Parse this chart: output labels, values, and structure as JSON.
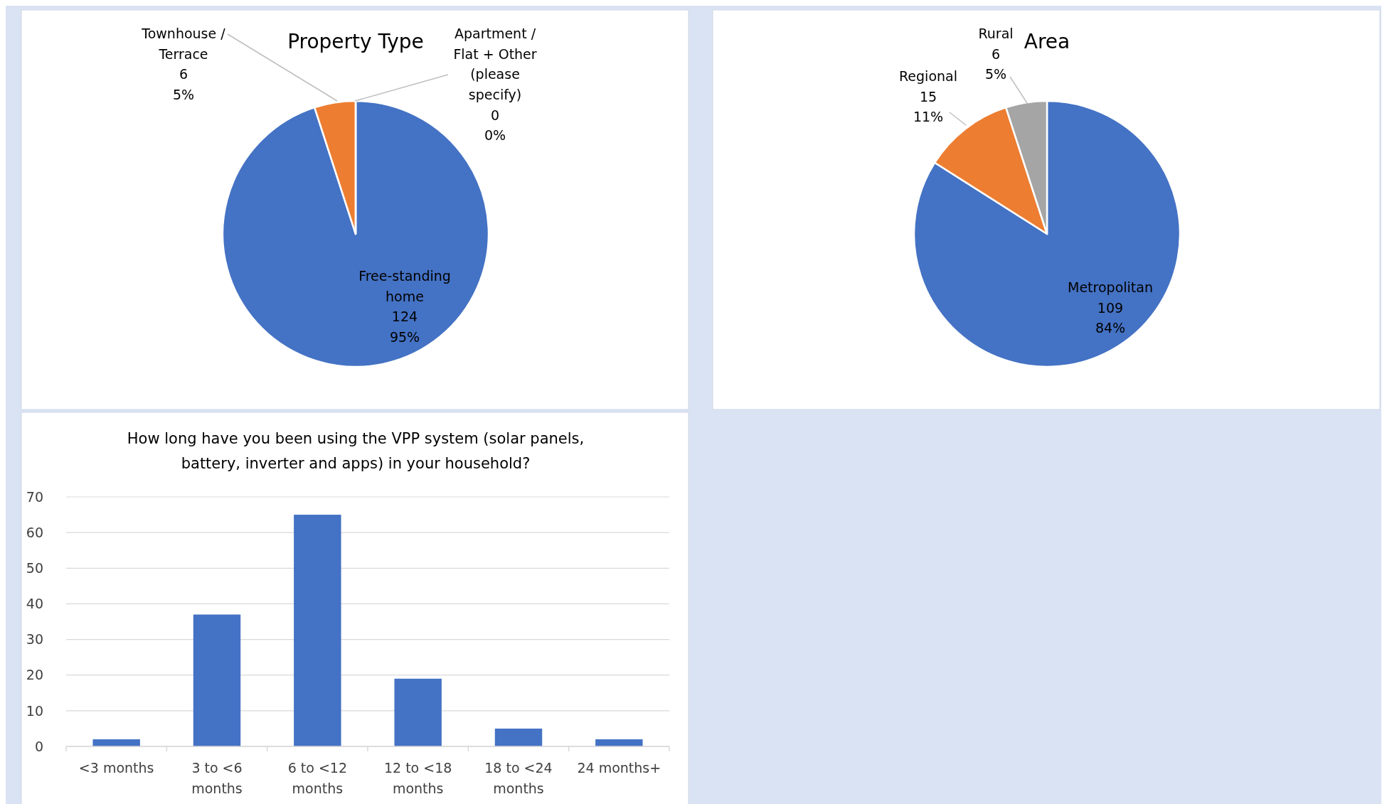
{
  "chart_data": [
    {
      "type": "pie",
      "title": "Property Type",
      "categories": [
        "Free-standing home",
        "Townhouse / Terrace",
        "Apartment / Flat + Other (please specify)"
      ],
      "values": [
        95,
        5,
        0
      ],
      "colors": [
        "#4472c4",
        "#ed7d31",
        "#a5a5a5"
      ],
      "value_labels": [
        "124\n95%",
        "6\n5%",
        "0\n0%"
      ]
    },
    {
      "type": "pie",
      "title": "Area",
      "categories": [
        "Metropolitan",
        "Regional",
        "Rural"
      ],
      "values": [
        84,
        11,
        5
      ],
      "colors": [
        "#4472c4",
        "#ed7d31",
        "#a5a5a5"
      ],
      "value_labels": [
        "109\n84%",
        "15\n11%",
        "6\n5%"
      ]
    },
    {
      "type": "bar",
      "title": "How long have you been using the VPP system (solar panels, battery, inverter and apps) in your household?",
      "categories": [
        "<3 months",
        "3 to <6 months",
        "6 to <12 months",
        "12 to <18 months",
        "18 to <24 months",
        "24 months+"
      ],
      "values": [
        2,
        37,
        65,
        19,
        5,
        2
      ],
      "color": "#4472c4",
      "ylim": [
        0,
        70
      ],
      "yticks": [
        0,
        10,
        20,
        30,
        40,
        50,
        60,
        70
      ],
      "grid": "y"
    }
  ]
}
